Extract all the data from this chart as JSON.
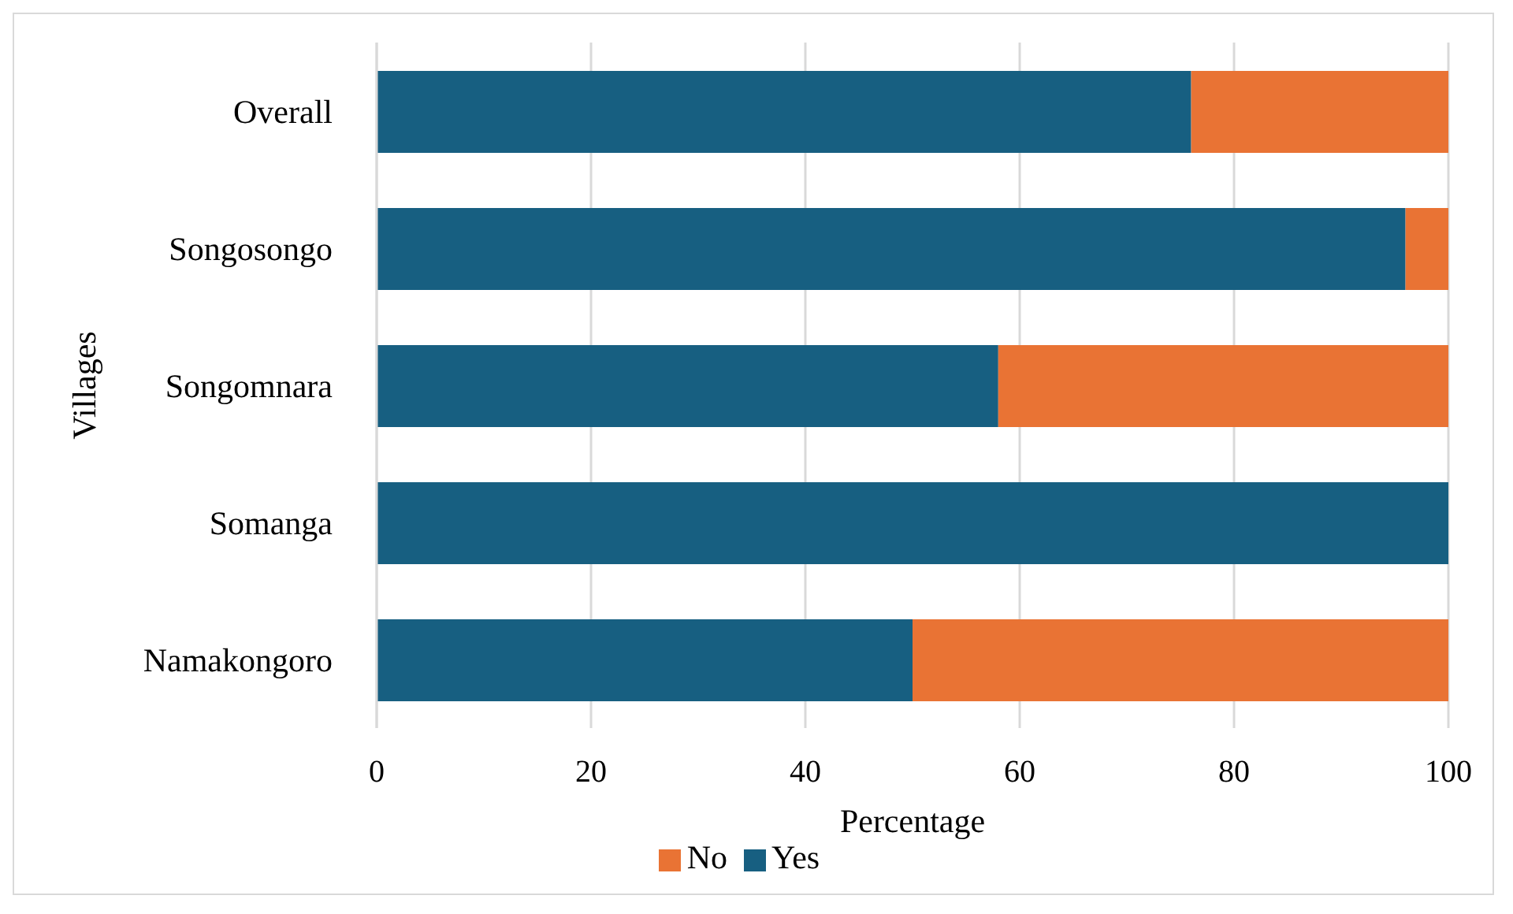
{
  "chart_data": {
    "type": "bar",
    "orientation": "horizontal",
    "stacked": true,
    "xlabel": "Percentage",
    "ylabel": "Villages",
    "categories": [
      "Overall",
      "Songosongo",
      "Songomnara",
      "Somanga",
      "Namakongoro"
    ],
    "series": [
      {
        "name": "Yes",
        "color": "#175f81",
        "values": [
          76,
          96,
          58,
          100,
          50
        ]
      },
      {
        "name": "No",
        "color": "#e97334",
        "values": [
          24,
          4,
          42,
          0,
          50
        ]
      }
    ],
    "xlim": [
      0,
      100
    ],
    "xticks": [
      0,
      20,
      40,
      60,
      80,
      100
    ],
    "grid": "x",
    "legend": "bottom"
  }
}
